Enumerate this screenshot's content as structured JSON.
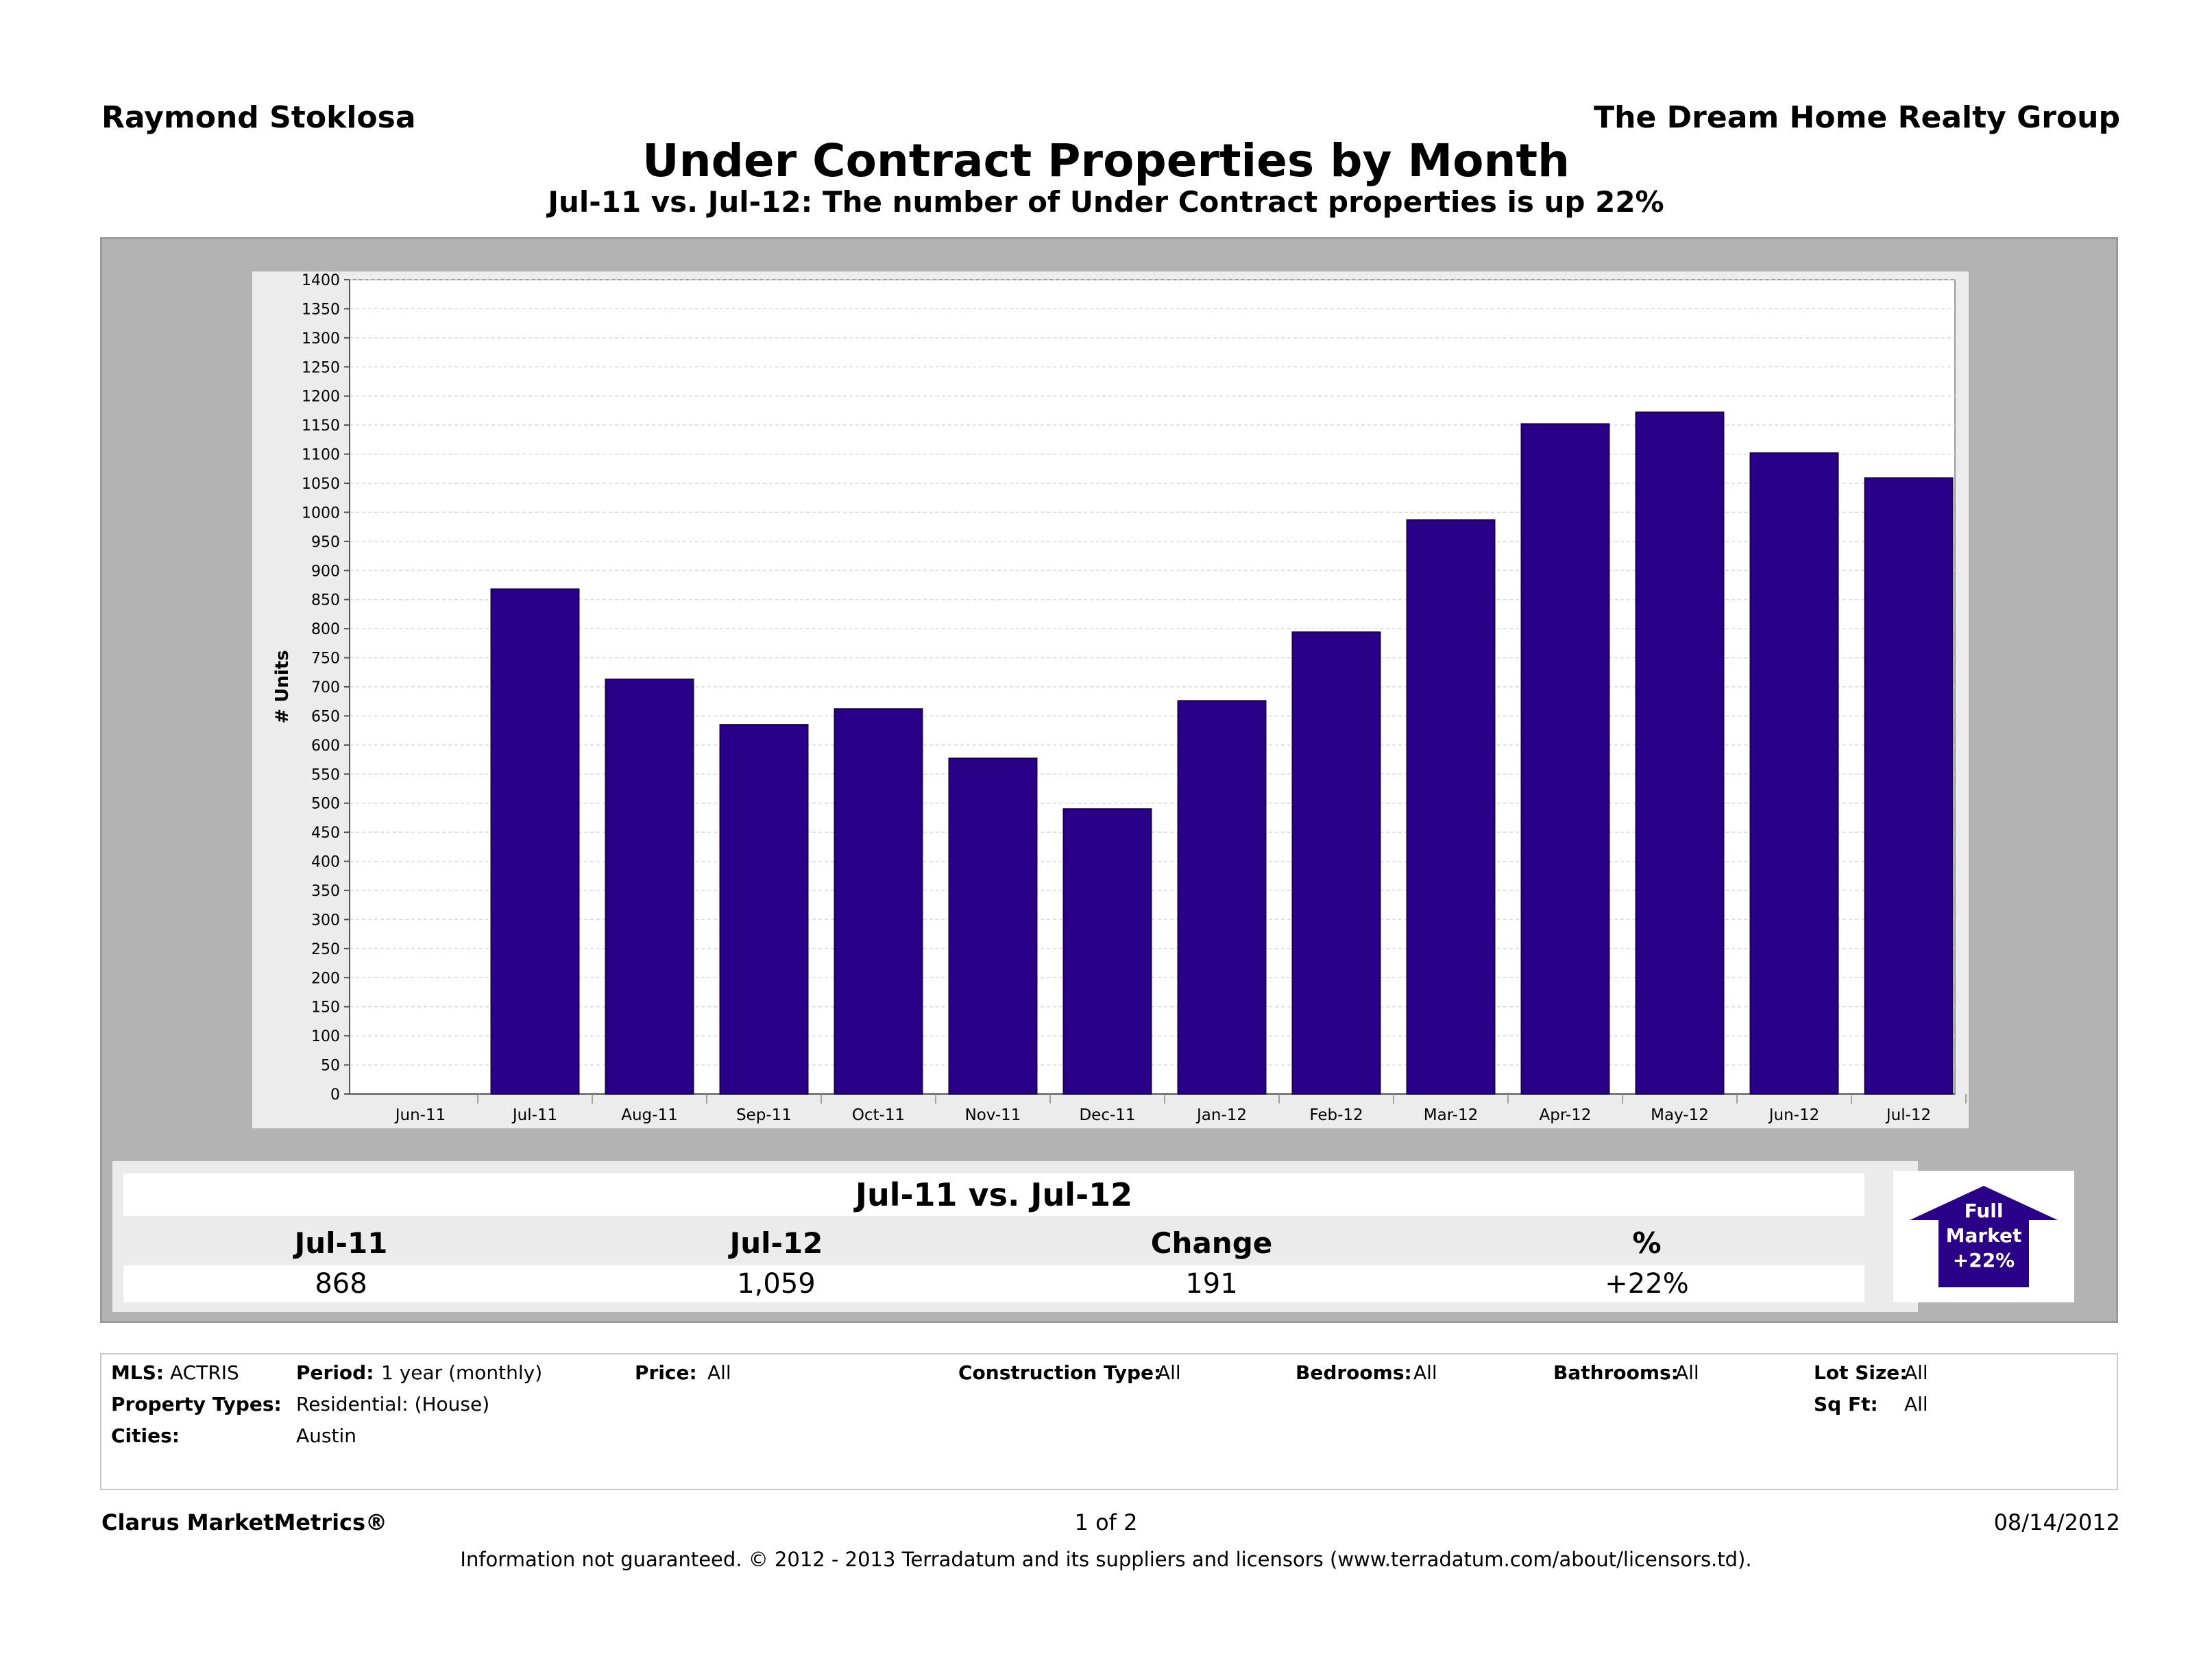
{
  "header": {
    "agent_name": "Raymond Stoklosa",
    "company": "The Dream Home Realty Group",
    "title": "Under Contract Properties by Month",
    "subtitle": "Jul-11 vs. Jul-12: The number of Under Contract properties is up 22%"
  },
  "chart_data": {
    "type": "bar",
    "title": "Under Contract Properties by Month",
    "xlabel": "",
    "ylabel": "# Units",
    "ylim": [
      0,
      1400
    ],
    "ytick_step": 50,
    "grid": true,
    "bar_color": "#2b0088",
    "categories": [
      "Jun-11",
      "Jul-11",
      "Aug-11",
      "Sep-11",
      "Oct-11",
      "Nov-11",
      "Dec-11",
      "Jan-12",
      "Feb-12",
      "Mar-12",
      "Apr-12",
      "May-12",
      "Jun-12",
      "Jul-12"
    ],
    "values": [
      null,
      868,
      713,
      635,
      662,
      577,
      490,
      676,
      794,
      987,
      1152,
      1172,
      1102,
      1059
    ]
  },
  "summary": {
    "title": "Jul-11 vs. Jul-12",
    "labels": [
      "Jul-11",
      "Jul-12",
      "Change",
      "%"
    ],
    "values": [
      "868",
      "1,059",
      "191",
      "+22%"
    ]
  },
  "badge": {
    "line1": "Full",
    "line2": "Market",
    "line3": "+22%",
    "color": "#2b0088"
  },
  "filters": {
    "mls_label": "MLS:",
    "mls_value": "ACTRIS",
    "period_label": "Period:",
    "period_value": "1 year (monthly)",
    "price_label": "Price:",
    "price_value": "All",
    "construction_label": "Construction Type:",
    "construction_value": "All",
    "bedrooms_label": "Bedrooms:",
    "bedrooms_value": "All",
    "bathrooms_label": "Bathrooms:",
    "bathrooms_value": "All",
    "lotsize_label": "Lot Size:",
    "lotsize_value": "All",
    "proptypes_label": "Property Types:",
    "proptypes_value": "Residential: (House)",
    "sqft_label": "Sq Ft:",
    "sqft_value": "All",
    "cities_label": "Cities:",
    "cities_value": "Austin"
  },
  "footer": {
    "brand": "Clarus MarketMetrics®",
    "page": "1 of 2",
    "date": "08/14/2012",
    "disclaimer": "Information not guaranteed.  © 2012 - 2013 Terradatum and its suppliers and licensors (www.terradatum.com/about/licensors.td)."
  }
}
